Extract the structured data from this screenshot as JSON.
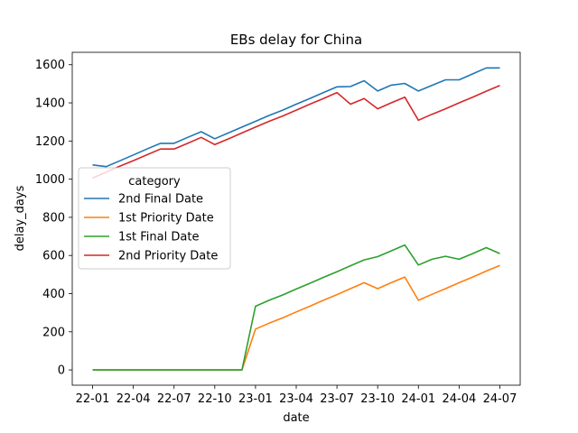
{
  "chart_data": {
    "type": "line",
    "title": "EBs delay for China",
    "xlabel": "date",
    "ylabel": "delay_days",
    "x_ticks": [
      "22-01",
      "22-04",
      "22-07",
      "22-10",
      "23-01",
      "23-04",
      "23-07",
      "23-10",
      "24-01",
      "24-04",
      "24-07"
    ],
    "y_ticks": [
      0,
      200,
      400,
      600,
      800,
      1000,
      1200,
      1400,
      1600
    ],
    "ylim": [
      -80,
      1665
    ],
    "xlim_months": [
      -1.5,
      31.5
    ],
    "grid": false,
    "legend": {
      "title": "category",
      "placement": "center-left",
      "entries": [
        "2nd Final Date",
        "1st Priority Date",
        "1st Final Date",
        "2nd Priority Date"
      ]
    },
    "series": [
      {
        "name": "2nd Final Date",
        "color": "#1f77b4",
        "x": [
          "22-01",
          "22-02",
          "22-03",
          "22-04",
          "22-05",
          "22-06",
          "22-07",
          "22-08",
          "22-09",
          "22-10",
          "22-11",
          "22-12",
          "23-01",
          "23-02",
          "23-03",
          "23-04",
          "23-05",
          "23-06",
          "23-07",
          "23-08",
          "23-09",
          "23-10",
          "23-11",
          "23-12",
          "24-01",
          "24-02",
          "24-03",
          "24-04",
          "24-05",
          "24-06",
          "24-07"
        ],
        "values": [
          1075,
          1066,
          1096,
          1127,
          1158,
          1188,
          1188,
          1219,
          1249,
          1212,
          1242,
          1273,
          1303,
          1334,
          1362,
          1393,
          1423,
          1454,
          1484,
          1486,
          1516,
          1462,
          1493,
          1502,
          1462,
          1492,
          1521,
          1521,
          1552,
          1583,
          1583
        ]
      },
      {
        "name": "1st Priority Date",
        "color": "#ff7f0e",
        "x": [
          "22-01",
          "22-02",
          "22-03",
          "22-04",
          "22-05",
          "22-06",
          "22-07",
          "22-08",
          "22-09",
          "22-10",
          "22-11",
          "22-12",
          "23-01",
          "23-02",
          "23-03",
          "23-04",
          "23-05",
          "23-06",
          "23-07",
          "23-08",
          "23-09",
          "23-10",
          "23-11",
          "23-12",
          "24-01",
          "24-02",
          "24-03",
          "24-04",
          "24-05",
          "24-06",
          "24-07"
        ],
        "values": [
          0,
          0,
          0,
          0,
          0,
          0,
          0,
          0,
          0,
          0,
          0,
          0,
          214,
          245,
          273,
          304,
          334,
          365,
          395,
          426,
          457,
          426,
          457,
          487,
          365,
          396,
          426,
          457,
          487,
          518,
          548
        ]
      },
      {
        "name": "1st Final Date",
        "color": "#2ca02c",
        "x": [
          "22-01",
          "22-02",
          "22-03",
          "22-04",
          "22-05",
          "22-06",
          "22-07",
          "22-08",
          "22-09",
          "22-10",
          "22-11",
          "22-12",
          "23-01",
          "23-02",
          "23-03",
          "23-04",
          "23-05",
          "23-06",
          "23-07",
          "23-08",
          "23-09",
          "23-10",
          "23-11",
          "23-12",
          "24-01",
          "24-02",
          "24-03",
          "24-04",
          "24-05",
          "24-06",
          "24-07"
        ],
        "values": [
          0,
          0,
          0,
          0,
          0,
          0,
          0,
          0,
          0,
          0,
          0,
          0,
          334,
          365,
          393,
          424,
          454,
          485,
          515,
          546,
          577,
          594,
          624,
          655,
          550,
          580,
          596,
          580,
          610,
          641,
          610
        ]
      },
      {
        "name": "2nd Priority Date",
        "color": "#d62728",
        "x": [
          "22-01",
          "22-02",
          "22-03",
          "22-04",
          "22-05",
          "22-06",
          "22-07",
          "22-08",
          "22-09",
          "22-10",
          "22-11",
          "22-12",
          "23-01",
          "23-02",
          "23-03",
          "23-04",
          "23-05",
          "23-06",
          "23-07",
          "23-08",
          "23-09",
          "23-10",
          "23-11",
          "23-12",
          "24-01",
          "24-02",
          "24-03",
          "24-04",
          "24-05",
          "24-06",
          "24-07"
        ],
        "values": [
          1006,
          1037,
          1068,
          1097,
          1128,
          1158,
          1158,
          1188,
          1219,
          1181,
          1211,
          1242,
          1273,
          1303,
          1331,
          1362,
          1393,
          1423,
          1454,
          1393,
          1423,
          1369,
          1400,
          1430,
          1309,
          1340,
          1369,
          1400,
          1430,
          1461,
          1491
        ]
      }
    ]
  }
}
